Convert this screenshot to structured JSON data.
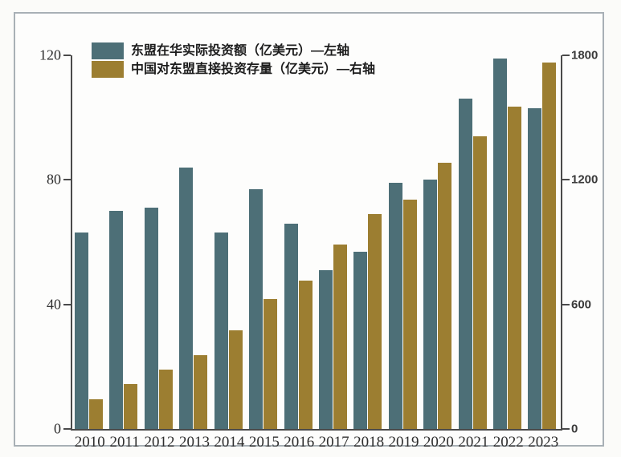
{
  "chart_data": {
    "type": "bar",
    "categories": [
      "2010",
      "2011",
      "2012",
      "2013",
      "2014",
      "2015",
      "2016",
      "2017",
      "2018",
      "2019",
      "2020",
      "2021",
      "2022",
      "2023"
    ],
    "series": [
      {
        "name": "东盟在华实际投资额（亿美元）—左轴",
        "axis": "left",
        "color": "#4d6f77",
        "values": [
          63,
          70,
          71,
          84,
          63,
          77,
          66,
          51,
          57,
          79,
          80,
          106,
          119,
          103
        ]
      },
      {
        "name": "中国对东盟直接投资存量（亿美元）—右轴",
        "axis": "right",
        "color": "#9c7e31",
        "values": [
          145,
          215,
          285,
          357,
          476,
          627,
          715,
          890,
          1035,
          1105,
          1282,
          1410,
          1553,
          1765
        ]
      }
    ],
    "left_axis": {
      "ticks": [
        0,
        40,
        80,
        120
      ],
      "min": 0,
      "max": 120
    },
    "right_axis": {
      "ticks": [
        0,
        600,
        1200,
        1800
      ],
      "min": 0,
      "max": 1800
    },
    "legend_position": "top-left",
    "grid": false
  },
  "colors": {
    "teal_series": "#4d6f77",
    "gold_series": "#9c7e31",
    "axis": "#4a4a4a",
    "frame_border": "#a8b0b6"
  }
}
